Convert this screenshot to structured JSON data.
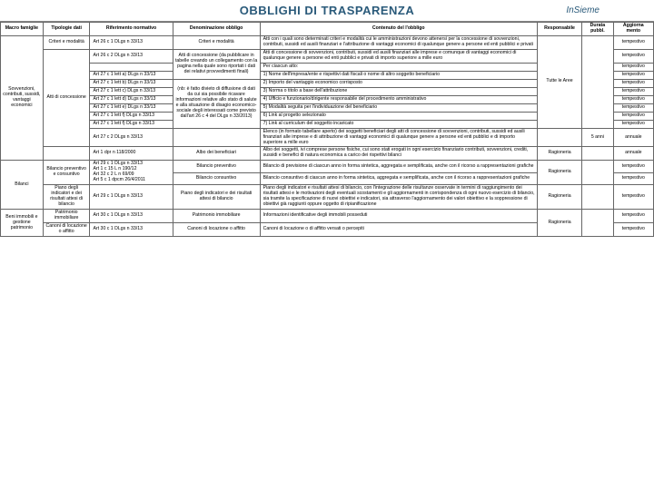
{
  "header": {
    "title": "OBBLIGHI DI TRASPARENZA",
    "logo": "InSieme"
  },
  "columns": {
    "macro": "Macro famiglie",
    "tipo": "Tipologie dati",
    "rif": "Riferimento normativo",
    "denom": "Denominazione obbligo",
    "cont": "Contenuto del l'obbligo",
    "resp": "Responsabile",
    "dur": "Durata pubbl.",
    "agg": "Aggiorna mento"
  },
  "macro1": "Sovvenzioni, contributi, sussidi, vantaggi economici",
  "macro2": "Bilanci",
  "macro3": "Beni immobili e gestione patrimonio",
  "r1": {
    "tipo": "Criteri e modalità",
    "rif": "Art 26 c 1 DLgs n 33/13",
    "denom": "Criteri e modalità",
    "cont": "Atti con i quali sono determinati criteri e modalità cui le amministrazioni devono attenersi per la concessione di sovvenzioni, contributi, sussidi ed ausili finanziari e l'attribuzione di vantaggi economici di qualunque genere a persone ed enti pubblici e privati",
    "agg": "tempestivo"
  },
  "r2": {
    "tipo": "Atti di concessione",
    "rif": "Art 26 c 2 DLgs n 33/13",
    "denom": "Atti di concessione (da pubblicare in tabelle creando un collegamento con la pagina nella quale sono riportati i dati dei relativi provvedimenti finali)",
    "cont": "Atti di concessione di sovvenzioni, contributi, sussidi ed ausili finanziari alle imprese e comunque di vantaggi economici di qualunque genere a persone ed enti pubblici e privati di importo superiore a mille euro",
    "agg": "tempestivo"
  },
  "r3": {
    "cont": "Per ciascun atto:",
    "agg": "tempestivo"
  },
  "r4": {
    "rif": "Art 27 c 1 lett a) DLgs n 33/13",
    "cont": "1) Nome dell'impresa/ente e rispettivi dati fiscali o nome di altro soggetto beneficiario",
    "agg": "tempestivo"
  },
  "r5": {
    "rif": "Art 27 c 1 lett b) DLgs n 33/13",
    "denom": "(nb: è fatto divieto di diffusione di dati da cui sia possibile ricavare informazioni relative allo stato di salute e alla situazione di disagio economico-sociale degli interessati come previsto dall'art 26 c 4 del DLgs n 33/2013)",
    "cont": "2) Importo del vantaggio economico corrisposto",
    "resp": "Tutte le Aree",
    "agg": "tempestivo"
  },
  "r6": {
    "rif": "Art 27 c 1 lett c) DLgs n 33/13",
    "cont": "3) Norma o titolo a base dell'attribuzione",
    "agg": "tempestivo"
  },
  "r7": {
    "rif": "Art 27 c 1 lett d) DLgs n 33/13",
    "cont": "4) Ufficio e funzionario/dirigente responsabile del procedimento amministrativo",
    "agg": "tempestivo"
  },
  "r8": {
    "rif": "Art 27 c 1 lett e) DLgs n 33/13",
    "cont": "5) Modalità seguita per l'individuazione del beneficiario",
    "agg": "tempestivo"
  },
  "r9": {
    "rif": "Art 27 c 1 lett f) DLgs n 33/13",
    "cont": "6) Link al progetto selezionato",
    "agg": "tempestivo"
  },
  "r10": {
    "rif": "Art 27 c 1 lett f) DLgs n 33/13",
    "cont": "7) Link al curriculum del soggetto incaricato",
    "agg": "tempestivo"
  },
  "r11": {
    "rif": "Art 27 c 2 DLgs n 33/13",
    "cont": "Elenco (in formato tabellare aperto) dei soggetti beneficiari degli atti di concessione di sovvenzioni, contributi, sussidi ed ausili finanziari alle imprese e di attribuzione di vantaggi economici di qualunque genere a persone ed enti pubblici e di importo superiore a mille euro",
    "dur": "5 anni",
    "agg": "annuale"
  },
  "r12": {
    "rif": "Art 1 dpr n 118/2000",
    "denom": "Albo dei beneficiari",
    "cont": "Albo dei soggetti, ivi comprese persone fisiche, cui sono stati erogati in ogni esercizio finanziario contributi, sovvenzioni, crediti, sussidi e benefici di natura economica a carico dei rispettivi bilanci",
    "resp": "Ragioneria",
    "agg": "annuale"
  },
  "r13": {
    "tipo": "Bilancio preventivo e consuntivo",
    "rif": "Art 29 c 1 DLgs n 33/13\nArt 1 c 15 L n 190/12\nArt 32 c 2 L n 69/09\nArt 5 c 1 dpcm 26/4/2011",
    "denom": "Bilancio preventivo",
    "cont": "Bilancio di previsione di ciascun anno in forma sintetica, aggregata e semplificata, anche con il ricorso a rappresentazioni grafiche",
    "resp": "Ragioneria",
    "agg": "tempestivo"
  },
  "r14": {
    "denom": "Bilancio consuntivo",
    "cont": "Bilancio consuntivo di ciascun anno in forma sintetica, aggregata e semplificata, anche con il ricorso a rappresentazioni grafiche",
    "agg": "tempestivo"
  },
  "r15": {
    "tipo": "Piano degli indicatori e dei risultati attesi di bilancio",
    "rif": "Art 29 c 1 DLgs n 33/13",
    "denom": "Piano degli indicatori e dei risultati attesi di bilancio",
    "cont": "Piano degli indicatori e risultati attesi di bilancio, con l'integrazione delle risultanze osservate in termini di raggiungimento dei risultati attesi e le motivazioni degli eventuali scostamenti e gli aggiornamenti in corrispondenza di ogni nuovo esercizio di bilancio, sia tramite la specificazione di nuovi obiettivi e indicatori, sia attraverso l'aggiornamento dei valori obiettivo e la soppressione di obiettivi già raggiunti oppure oggetto di ripianificazione",
    "resp": "Ragioneria",
    "agg": "tempestivo"
  },
  "r16": {
    "tipo": "Patrimonio immobiliare",
    "rif": "Art 30 c 1 DLgs n 33/13",
    "denom": "Patrimonio immobiliare",
    "cont": "Informazioni identificative degli immobili posseduti",
    "resp": "Ragioneria",
    "agg": "tempestivo"
  },
  "r17": {
    "tipo": "Canoni di locazione o affitto",
    "rif": "Art 30 c 1 DLgs n 33/13",
    "denom": "Canoni di locazione o affitto",
    "cont": "Canoni di locazione o di affitto versati o percepiti",
    "agg": "tempestivo"
  }
}
